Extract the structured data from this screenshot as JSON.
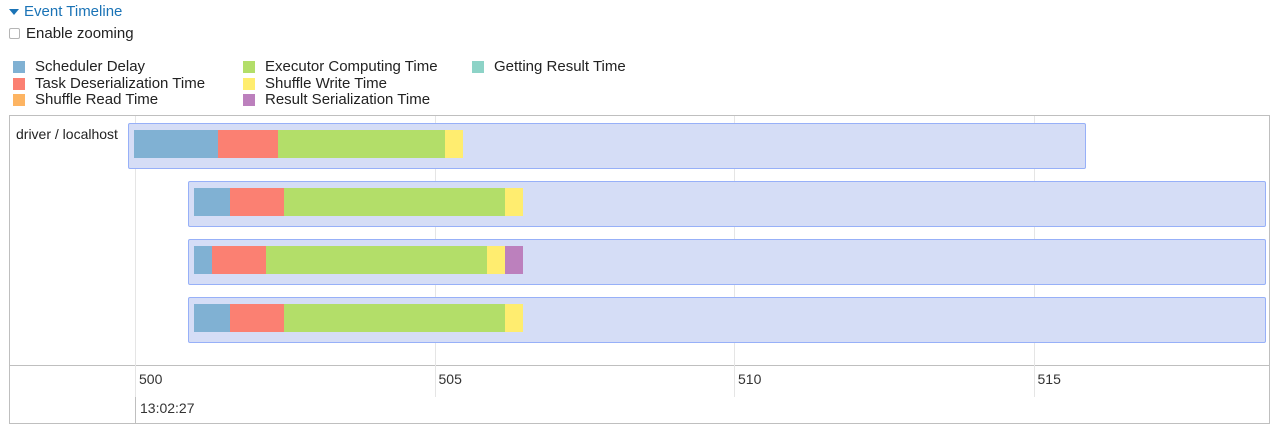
{
  "header": {
    "title": "Event Timeline"
  },
  "zoom": {
    "label": "Enable zooming",
    "checked": false
  },
  "legend": [
    {
      "label": "Scheduler Delay",
      "color": "#80b1d3"
    },
    {
      "label": "Task Deserialization Time",
      "color": "#fb8072"
    },
    {
      "label": "Shuffle Read Time",
      "color": "#fdb462"
    },
    {
      "label": "Executor Computing Time",
      "color": "#b3de69"
    },
    {
      "label": "Shuffle Write Time",
      "color": "#ffed6f"
    },
    {
      "label": "Result Serialization Time",
      "color": "#bc80bd"
    },
    {
      "label": "Getting Result Time",
      "color": "#8dd3c7"
    }
  ],
  "timeline": {
    "group_label": "driver / localhost",
    "axis": {
      "range_ms": [
        499.9,
        518.9
      ],
      "ticks": [
        "500",
        "505",
        "510",
        "515"
      ],
      "minor_label": "13:02:27"
    },
    "tasks": [
      {
        "start": 499.9,
        "end": 515.9,
        "segments": [
          {
            "phase": "Scheduler Delay",
            "ms": 1.4
          },
          {
            "phase": "Task Deserialization Time",
            "ms": 1.0
          },
          {
            "phase": "Executor Computing Time",
            "ms": 2.8
          },
          {
            "phase": "Shuffle Write Time",
            "ms": 0.3
          }
        ]
      },
      {
        "start": 500.9,
        "end": 518.9,
        "segments": [
          {
            "phase": "Scheduler Delay",
            "ms": 0.6
          },
          {
            "phase": "Task Deserialization Time",
            "ms": 0.9
          },
          {
            "phase": "Executor Computing Time",
            "ms": 3.7
          },
          {
            "phase": "Shuffle Write Time",
            "ms": 0.3
          }
        ]
      },
      {
        "start": 500.9,
        "end": 518.9,
        "segments": [
          {
            "phase": "Scheduler Delay",
            "ms": 0.3
          },
          {
            "phase": "Task Deserialization Time",
            "ms": 0.9
          },
          {
            "phase": "Executor Computing Time",
            "ms": 3.7
          },
          {
            "phase": "Shuffle Write Time",
            "ms": 0.3
          },
          {
            "phase": "Result Serialization Time",
            "ms": 0.3
          }
        ]
      },
      {
        "start": 500.9,
        "end": 518.9,
        "segments": [
          {
            "phase": "Scheduler Delay",
            "ms": 0.6
          },
          {
            "phase": "Task Deserialization Time",
            "ms": 0.9
          },
          {
            "phase": "Executor Computing Time",
            "ms": 3.7
          },
          {
            "phase": "Shuffle Write Time",
            "ms": 0.3
          }
        ]
      }
    ]
  }
}
